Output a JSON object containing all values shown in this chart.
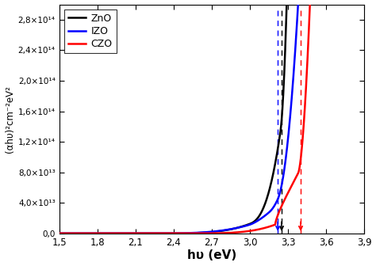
{
  "xlabel": "hυ (eV)",
  "ylabel": "(αhυ)²cm⁻²eV²",
  "xlim": [
    1.5,
    3.9
  ],
  "ylim": [
    0,
    300000000000000.0
  ],
  "yticks": [
    0,
    40000000000000.0,
    80000000000000.0,
    120000000000000.0,
    160000000000000.0,
    200000000000000.0,
    240000000000000.0,
    280000000000000.0
  ],
  "ytick_labels": [
    "0,0",
    "4,0×10¹³",
    "8,0×10¹³",
    "1,2×10¹⁴",
    "1,6×10¹⁴",
    "2,0×10¹⁴",
    "2,4×10¹⁴",
    "2,8×10¹⁴"
  ],
  "xticks": [
    1.5,
    1.8,
    2.1,
    2.4,
    2.7,
    3.0,
    3.3,
    3.6,
    3.9
  ],
  "xtick_labels": [
    "1,5",
    "1,8",
    "2,1",
    "2,4",
    "2,7",
    "3,0",
    "3,3",
    "3,6",
    "3,9"
  ],
  "legend": [
    "ZnO",
    "IZO",
    "CZO"
  ],
  "colors": [
    "black",
    "blue",
    "red"
  ],
  "bg_ZnO": 3.25,
  "bg_IZO": 3.22,
  "bg_CZO": 3.4,
  "dashed_ZnO_x": 3.25,
  "dashed_IZO_x": 3.22,
  "dashed_CZO_x": 3.4
}
